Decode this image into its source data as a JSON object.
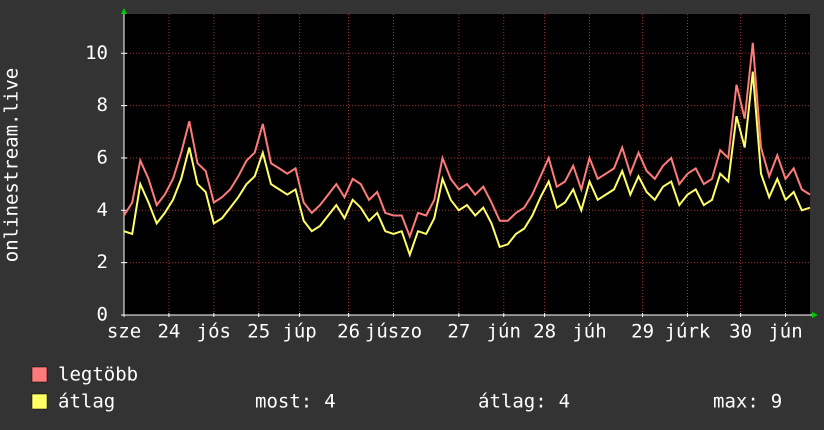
{
  "chart_data": {
    "type": "line",
    "y_label": "onlinestream.live",
    "x": [
      0,
      2,
      4,
      6,
      8,
      10,
      12,
      14,
      16,
      18,
      20,
      22,
      24,
      26,
      28,
      30,
      32,
      34,
      36,
      38,
      40,
      42,
      44,
      46,
      48,
      50,
      52,
      54,
      56,
      58,
      60,
      62,
      64,
      66,
      68,
      70,
      72,
      74,
      76,
      78,
      80,
      82,
      84,
      86,
      88,
      90,
      92,
      94,
      96,
      98,
      100,
      102,
      104,
      106,
      108,
      110,
      112,
      114,
      116,
      118,
      120,
      122,
      124,
      126,
      128,
      130,
      132,
      134,
      136,
      138,
      140,
      142,
      144,
      146,
      148,
      150,
      152,
      154,
      156,
      158,
      160,
      162,
      164,
      166,
      168
    ],
    "series": [
      {
        "name": "legtöbb",
        "color": "#ff7a7a",
        "values": [
          3.8,
          4.3,
          5.9,
          5.2,
          4.2,
          4.6,
          5.2,
          6.2,
          7.4,
          5.8,
          5.5,
          4.3,
          4.5,
          4.8,
          5.3,
          5.9,
          6.2,
          7.3,
          5.8,
          5.6,
          5.4,
          5.6,
          4.3,
          3.9,
          4.2,
          4.6,
          5.0,
          4.5,
          5.2,
          5.0,
          4.4,
          4.7,
          3.9,
          3.8,
          3.8,
          3.0,
          3.9,
          3.8,
          4.4,
          6.0,
          5.2,
          4.8,
          5.0,
          4.6,
          4.9,
          4.3,
          3.6,
          3.6,
          3.9,
          4.1,
          4.6,
          5.3,
          6.0,
          4.9,
          5.1,
          5.7,
          4.8,
          6.0,
          5.2,
          5.4,
          5.6,
          6.4,
          5.4,
          6.2,
          5.5,
          5.2,
          5.7,
          6.0,
          5.0,
          5.4,
          5.6,
          5.0,
          5.2,
          6.3,
          6.0,
          8.8,
          7.5,
          10.4,
          6.4,
          5.3,
          6.1,
          5.2,
          5.6,
          4.8,
          4.6
        ]
      },
      {
        "name": "átlag",
        "color": "#ffff66",
        "values": [
          3.2,
          3.1,
          5.0,
          4.3,
          3.5,
          3.9,
          4.4,
          5.2,
          6.4,
          5.0,
          4.7,
          3.5,
          3.7,
          4.1,
          4.5,
          5.0,
          5.3,
          6.2,
          5.0,
          4.8,
          4.6,
          4.8,
          3.6,
          3.2,
          3.4,
          3.8,
          4.2,
          3.7,
          4.4,
          4.1,
          3.6,
          3.9,
          3.2,
          3.1,
          3.2,
          2.3,
          3.2,
          3.1,
          3.7,
          5.2,
          4.4,
          4.0,
          4.2,
          3.8,
          4.1,
          3.5,
          2.6,
          2.7,
          3.1,
          3.3,
          3.8,
          4.5,
          5.1,
          4.1,
          4.3,
          4.8,
          4.0,
          5.1,
          4.4,
          4.6,
          4.8,
          5.5,
          4.6,
          5.3,
          4.7,
          4.4,
          4.9,
          5.1,
          4.2,
          4.6,
          4.8,
          4.2,
          4.4,
          5.4,
          5.1,
          7.6,
          6.4,
          9.3,
          5.4,
          4.5,
          5.2,
          4.4,
          4.7,
          4.0,
          4.1
        ]
      }
    ],
    "xlim": [
      0,
      168
    ],
    "xticks": [
      {
        "value": 0,
        "label": "sze"
      },
      {
        "value": 11,
        "label": "24"
      },
      {
        "value": 22,
        "label": "jós"
      },
      {
        "value": 33,
        "label": "25"
      },
      {
        "value": 43,
        "label": "júp"
      },
      {
        "value": 55,
        "label": "26"
      },
      {
        "value": 66,
        "label": "júszo"
      },
      {
        "value": 82,
        "label": "27"
      },
      {
        "value": 93,
        "label": "jún"
      },
      {
        "value": 103,
        "label": "28"
      },
      {
        "value": 114,
        "label": "júh"
      },
      {
        "value": 127,
        "label": "29"
      },
      {
        "value": 138,
        "label": "júrk"
      },
      {
        "value": 151,
        "label": "30"
      },
      {
        "value": 162,
        "label": "jún"
      }
    ],
    "ylim": [
      0,
      11.5
    ],
    "yticks": [
      0,
      2,
      4,
      6,
      8,
      10
    ],
    "grid": true,
    "stats": [
      {
        "label": "most:",
        "value": 4
      },
      {
        "label": "átlag:",
        "value": 4
      },
      {
        "label": "max:",
        "value": 9
      }
    ]
  }
}
